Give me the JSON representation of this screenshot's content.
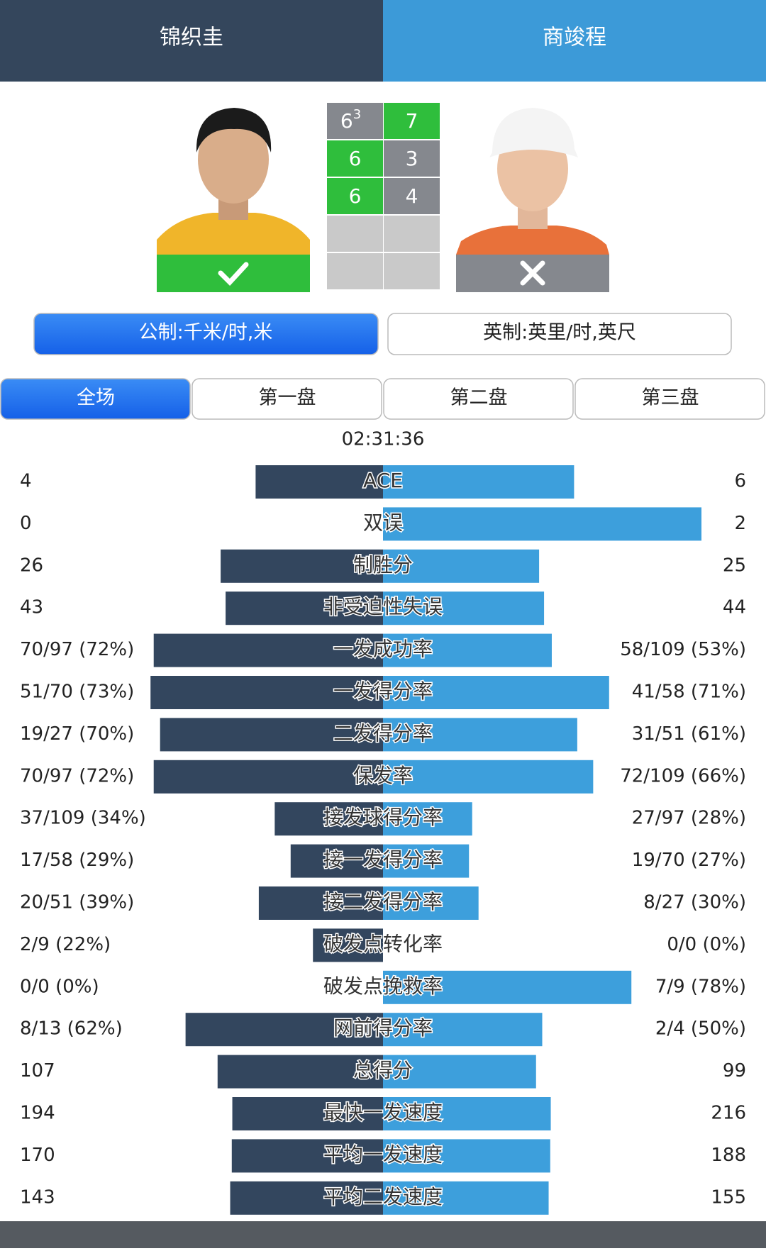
{
  "header": {
    "left_player": "锦织圭",
    "right_player": "商竣程"
  },
  "score": {
    "winner": "left",
    "sets": [
      {
        "left": "6",
        "left_tiebreak": "3",
        "right": "7",
        "winner": "right"
      },
      {
        "left": "6",
        "right": "3",
        "winner": "left"
      },
      {
        "left": "6",
        "right": "4",
        "winner": "left"
      }
    ]
  },
  "units": [
    "公制:千米/时,米",
    "英制:英里/时,英尺"
  ],
  "active_unit": 0,
  "tabs": [
    "全场",
    "第一盘",
    "第二盘",
    "第三盘"
  ],
  "active_tab": 0,
  "duration": "02:31:36",
  "stats": [
    {
      "label": "ACE",
      "left": "4",
      "right": "6"
    },
    {
      "label": "双误",
      "left": "0",
      "right": "2"
    },
    {
      "label": "制胜分",
      "left": "26",
      "right": "25"
    },
    {
      "label": "非受迫性失误",
      "left": "43",
      "right": "44"
    },
    {
      "label": "一发成功率",
      "left": "70/97 (72%)",
      "right": "58/109 (53%)"
    },
    {
      "label": "一发得分率",
      "left": "51/70 (73%)",
      "right": "41/58 (71%)"
    },
    {
      "label": "二发得分率",
      "left": "19/27 (70%)",
      "right": "31/51 (61%)"
    },
    {
      "label": "保发率",
      "left": "70/97 (72%)",
      "right": "72/109 (66%)"
    },
    {
      "label": "接发球得分率",
      "left": "37/109 (34%)",
      "right": "27/97 (28%)"
    },
    {
      "label": "接一发得分率",
      "left": "17/58 (29%)",
      "right": "19/70 (27%)"
    },
    {
      "label": "接二发得分率",
      "left": "20/51 (39%)",
      "right": "8/27 (30%)"
    },
    {
      "label": "破发点转化率",
      "left": "2/9 (22%)",
      "right": "0/0 (0%)"
    },
    {
      "label": "破发点挽救率",
      "left": "0/0 (0%)",
      "right": "7/9 (78%)"
    },
    {
      "label": "网前得分率",
      "left": "8/13 (62%)",
      "right": "2/4 (50%)"
    },
    {
      "label": "总得分",
      "left": "107",
      "right": "99"
    },
    {
      "label": "最快一发速度",
      "left": "194",
      "right": "216"
    },
    {
      "label": "平均一发速度",
      "left": "170",
      "right": "188"
    },
    {
      "label": "平均二发速度",
      "left": "143",
      "right": "155"
    }
  ]
}
